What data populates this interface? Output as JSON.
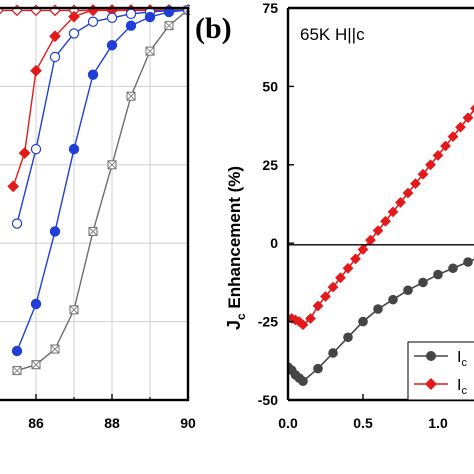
{
  "chart_data": [
    {
      "panel": "a",
      "type": "line",
      "title": "",
      "xlabel": "",
      "ylabel": "",
      "xlim": [
        85,
        90
      ],
      "ylim": [
        0,
        1.0
      ],
      "xticks": [
        86,
        88,
        90
      ],
      "grid": true,
      "series": [
        {
          "marker": "open-diamond",
          "color": "#e31a1c",
          "x": [
            85.0,
            85.5,
            86.0,
            86.5,
            87.0,
            87.5,
            88.0,
            88.5,
            89.0,
            89.5,
            90.0
          ],
          "y": [
            0.994,
            0.994,
            0.994,
            0.994,
            0.994,
            0.994,
            0.994,
            0.994,
            0.994,
            0.994,
            0.994
          ]
        },
        {
          "marker": "filled-diamond",
          "color": "#e31a1c",
          "x": [
            85.4,
            85.7,
            86.0,
            86.5,
            87.0,
            87.5,
            88.0,
            88.5,
            89.0,
            89.5,
            90.0
          ],
          "y": [
            0.545,
            0.63,
            0.84,
            0.928,
            0.978,
            0.995,
            0.995,
            0.995,
            0.995,
            0.995,
            0.995
          ]
        },
        {
          "marker": "open-circle",
          "color": "#1f3fd6",
          "x": [
            85.5,
            86.0,
            86.5,
            87.0,
            87.5,
            88.0,
            88.5,
            89.0,
            89.5,
            90.0
          ],
          "y": [
            0.45,
            0.64,
            0.875,
            0.935,
            0.965,
            0.975,
            0.985,
            0.99,
            0.993,
            0.995
          ]
        },
        {
          "marker": "filled-circle",
          "color": "#1f3fd6",
          "x": [
            85.5,
            86.0,
            86.5,
            87.0,
            87.5,
            88.0,
            88.5,
            89.0,
            89.5,
            90.0
          ],
          "y": [
            0.125,
            0.245,
            0.43,
            0.64,
            0.83,
            0.905,
            0.955,
            0.977,
            0.99,
            0.995
          ]
        },
        {
          "marker": "crossed-square",
          "color": "#6e6e6e",
          "x": [
            85.5,
            86.0,
            86.5,
            87.0,
            87.5,
            88.0,
            88.5,
            89.0,
            89.5,
            90.0
          ],
          "y": [
            0.075,
            0.09,
            0.13,
            0.23,
            0.43,
            0.6,
            0.775,
            0.89,
            0.955,
            0.995
          ]
        }
      ]
    },
    {
      "panel": "b",
      "type": "line",
      "title": "",
      "annotation": "65K   H||c",
      "xlabel": "",
      "ylabel": "J_c Enhancement (%)",
      "xlim": [
        0,
        1.3
      ],
      "ylim": [
        -50,
        75
      ],
      "xticks": [
        "0.0",
        "0.5",
        "1.0"
      ],
      "yticks": [
        "-50",
        "-25",
        "0",
        "25",
        "50",
        "75"
      ],
      "grid": false,
      "legend_position": "bottom-right",
      "series": [
        {
          "name": "I_c",
          "marker": "circle",
          "color": "#454545",
          "x": [
            0.0,
            0.025,
            0.05,
            0.075,
            0.1,
            0.2,
            0.3,
            0.4,
            0.5,
            0.6,
            0.7,
            0.8,
            0.9,
            1.0,
            1.1,
            1.2,
            1.3
          ],
          "y": [
            -39.5,
            -40.5,
            -42,
            -43,
            -44,
            -40,
            -35,
            -30,
            -25,
            -21,
            -18,
            -15,
            -12.5,
            -10,
            -8,
            -6,
            -4
          ]
        },
        {
          "name": "I_c",
          "marker": "diamond",
          "color": "#e31a1c",
          "x": [
            0.0,
            0.025,
            0.05,
            0.075,
            0.1,
            0.15,
            0.2,
            0.25,
            0.3,
            0.35,
            0.4,
            0.45,
            0.5,
            0.55,
            0.6,
            0.65,
            0.7,
            0.75,
            0.8,
            0.85,
            0.9,
            0.95,
            1.0,
            1.05,
            1.1,
            1.15,
            1.2,
            1.25,
            1.3
          ],
          "y": [
            -24,
            -24,
            -24.5,
            -25,
            -26,
            -24,
            -20,
            -17,
            -14,
            -11,
            -8,
            -5,
            -2,
            1,
            4,
            7,
            10,
            13,
            16,
            19,
            22,
            25,
            28,
            31,
            34,
            37,
            40,
            43,
            46
          ]
        }
      ],
      "panel_label": "(b)"
    }
  ]
}
